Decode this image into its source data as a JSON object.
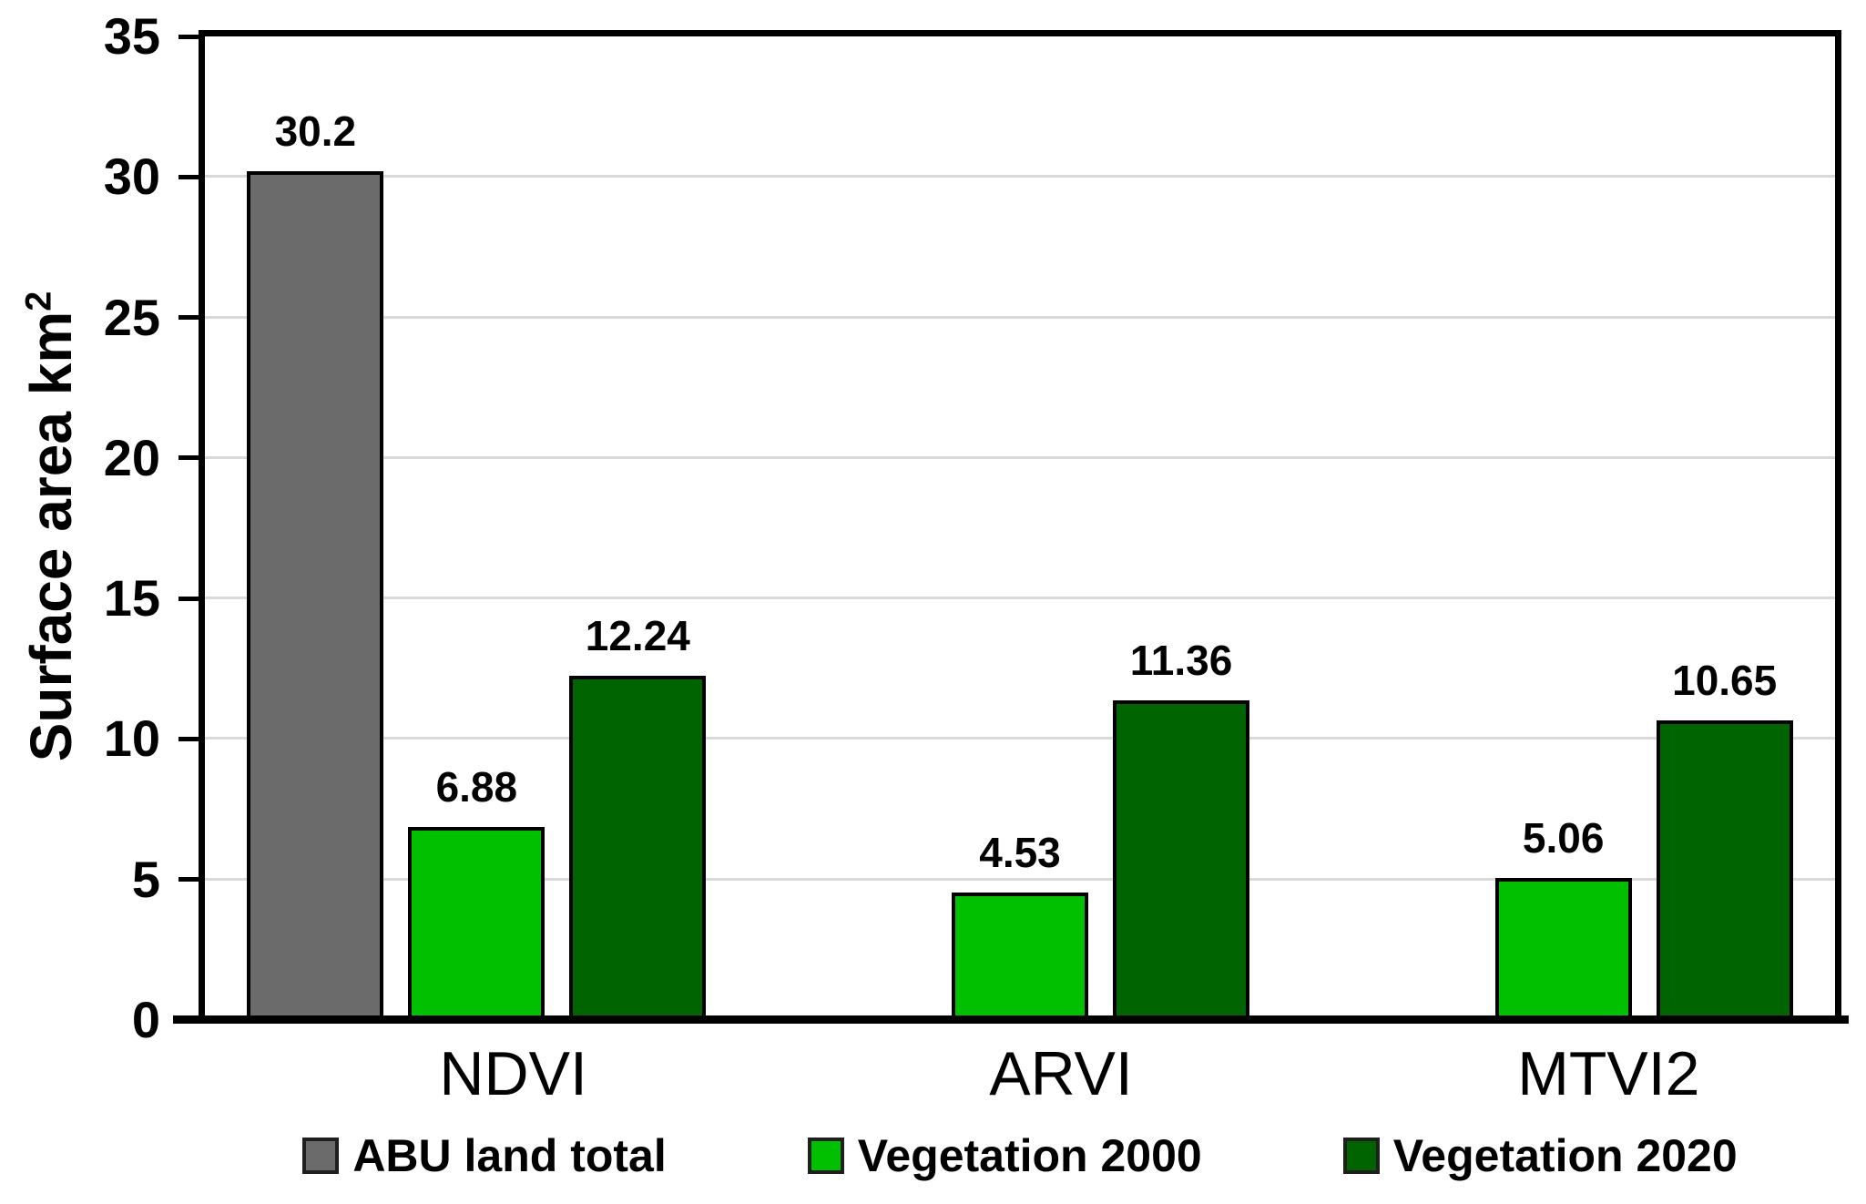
{
  "chart_data": {
    "type": "bar",
    "title": "",
    "ylabel": "Surface area km²",
    "ylabel_base": "Surface area km",
    "ylabel_exponent": "2",
    "categories": [
      "NDVI",
      "ARVI",
      "MTVI2"
    ],
    "series": [
      {
        "name": "ABU land total",
        "color": "#6b6b6b",
        "values": [
          30.2,
          null,
          null
        ],
        "labels": [
          "30.2",
          "",
          ""
        ]
      },
      {
        "name": "Vegetation 2000",
        "color": "#00c000",
        "values": [
          6.88,
          4.53,
          5.06
        ],
        "labels": [
          "6.88",
          "4.53",
          "5.06"
        ]
      },
      {
        "name": "Vegetation 2020",
        "color": "#006400",
        "values": [
          12.24,
          11.36,
          10.65
        ],
        "labels": [
          "12.24",
          "11.36",
          "10.65"
        ]
      }
    ],
    "ylim": [
      0,
      35
    ],
    "yticks": [
      0,
      5,
      10,
      15,
      20,
      25,
      30,
      35
    ],
    "grid": true,
    "gridline_color": "#d9d9d9",
    "axis_color": "#000000",
    "bar_border_color": "#000000",
    "legend_position": "bottom"
  }
}
